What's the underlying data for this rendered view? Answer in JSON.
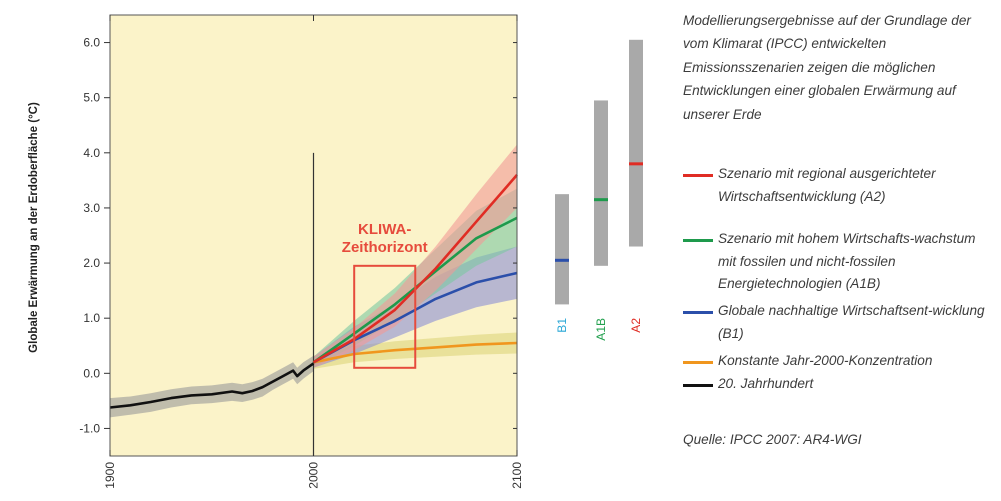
{
  "chart_data": {
    "type": "line",
    "ylabel": "Globale Erwärmung an der Erdoberfläche (°C)",
    "xlim": [
      1900,
      2100
    ],
    "ylim": [
      -1.5,
      6.5
    ],
    "x_ticks": [
      "1900",
      "2000",
      "2100"
    ],
    "y_ticks": [
      "-1.0",
      "0.0",
      "1.0",
      "2.0",
      "3.0",
      "4.0",
      "5.0",
      "6.0"
    ],
    "plot_background": "#fbf3c9",
    "grid": false,
    "vertical_marker_year": 2000,
    "series": [
      {
        "key": "hist",
        "name": "20. Jahrhundert",
        "color": "#111111",
        "band_color": "#9a9a9a",
        "x": [
          1900,
          1910,
          1920,
          1930,
          1940,
          1950,
          1960,
          1965,
          1970,
          1975,
          1980,
          1985,
          1990,
          1992,
          1995,
          2000
        ],
        "y": [
          -0.62,
          -0.58,
          -0.52,
          -0.45,
          -0.4,
          -0.38,
          -0.33,
          -0.36,
          -0.32,
          -0.25,
          -0.15,
          -0.05,
          0.05,
          -0.05,
          0.05,
          0.18
        ],
        "band_lower": [
          -0.8,
          -0.75,
          -0.7,
          -0.62,
          -0.56,
          -0.54,
          -0.5,
          -0.52,
          -0.48,
          -0.42,
          -0.3,
          -0.2,
          -0.1,
          -0.2,
          -0.1,
          0.04
        ],
        "band_upper": [
          -0.45,
          -0.42,
          -0.36,
          -0.29,
          -0.24,
          -0.22,
          -0.17,
          -0.2,
          -0.16,
          -0.1,
          0.0,
          0.1,
          0.2,
          0.1,
          0.2,
          0.32
        ]
      },
      {
        "key": "const",
        "name": "Konstante Jahr-2000-Konzentration",
        "color": "#f0961e",
        "band_color": "#ddd67c",
        "x": [
          2000,
          2020,
          2040,
          2060,
          2080,
          2100
        ],
        "y": [
          0.2,
          0.35,
          0.42,
          0.47,
          0.52,
          0.55
        ],
        "band_lower": [
          0.08,
          0.2,
          0.26,
          0.3,
          0.34,
          0.36
        ],
        "band_upper": [
          0.32,
          0.5,
          0.58,
          0.64,
          0.7,
          0.74
        ]
      },
      {
        "key": "b1",
        "name": "Globale nachhaltige Wirtschaftsentwicklung (B1)",
        "color": "#2b4faa",
        "band_color": "#8c90d6",
        "x": [
          2000,
          2020,
          2040,
          2060,
          2080,
          2100
        ],
        "y": [
          0.2,
          0.6,
          0.95,
          1.35,
          1.65,
          1.82
        ],
        "band_lower": [
          0.1,
          0.35,
          0.65,
          0.95,
          1.2,
          1.35
        ],
        "band_upper": [
          0.3,
          0.85,
          1.25,
          1.75,
          2.1,
          2.3
        ]
      },
      {
        "key": "a1b",
        "name": "Szenario mit hohem Wirtschaftswachstum mit fossilen und nicht-fossilen Energietechnologien (A1B)",
        "color": "#1e9a4c",
        "band_color": "#7cc8a2",
        "x": [
          2000,
          2020,
          2040,
          2060,
          2080,
          2100
        ],
        "y": [
          0.2,
          0.72,
          1.25,
          1.85,
          2.45,
          2.82
        ],
        "band_lower": [
          0.1,
          0.5,
          0.95,
          1.45,
          1.95,
          2.3
        ],
        "band_upper": [
          0.3,
          0.95,
          1.55,
          2.25,
          2.95,
          3.35
        ]
      },
      {
        "key": "a2",
        "name": "Szenario mit regional ausgerichteter Wirtschaftsentwicklung (A2)",
        "color": "#e02c24",
        "band_color": "#f29a96",
        "x": [
          2000,
          2020,
          2040,
          2060,
          2080,
          2100
        ],
        "y": [
          0.2,
          0.62,
          1.15,
          1.9,
          2.75,
          3.6
        ],
        "band_lower": [
          0.1,
          0.42,
          0.85,
          1.5,
          2.25,
          3.0
        ],
        "band_upper": [
          0.3,
          0.82,
          1.45,
          2.3,
          3.25,
          4.15
        ]
      }
    ],
    "kliwa_box": {
      "x_from": 2020,
      "x_to": 2050,
      "y_from": 0.1,
      "y_to": 1.95,
      "label_line1": "KLIWA-",
      "label_line2": "Zeithorizont",
      "color": "#e64b3c"
    },
    "ranges": [
      {
        "label": "B1",
        "low": 1.25,
        "high": 3.25,
        "best": 2.05,
        "label_color": "#2aa7d6",
        "mark_color": "#2b4faa"
      },
      {
        "label": "A1B",
        "low": 1.95,
        "high": 4.95,
        "best": 3.15,
        "label_color": "#22a04e",
        "mark_color": "#1e9a4c"
      },
      {
        "label": "A2",
        "low": 2.3,
        "high": 6.05,
        "best": 3.8,
        "label_color": "#e02c24",
        "mark_color": "#e02c24"
      }
    ],
    "range_bar_color": "#a9a9a9"
  },
  "side": {
    "description": "Modellierungsergebnisse auf der Grundlage der vom Klimarat (IPCC) entwickelten Emissionsszenarien zeigen die möglichen Entwicklungen einer globalen Erwärmung auf unserer Erde",
    "legend": [
      {
        "label": "Szenario mit regional ausgerichteter Wirtschaftsentwicklung (A2)",
        "color": "#e02c24"
      },
      {
        "label": "Szenario mit hohem Wirtschafts-wachstum mit fossilen und nicht-fossilen Energietechnologien (A1B)",
        "color": "#1e9a4c"
      },
      {
        "label": "Globale nachhaltige Wirtschaftsent-wicklung (B1)",
        "color": "#2b4faa"
      },
      {
        "label": "Konstante Jahr-2000-Konzentration",
        "color": "#f0961e"
      },
      {
        "label": "20. Jahrhundert",
        "color": "#111111"
      }
    ],
    "source": "Quelle: IPCC 2007: AR4-WGI"
  }
}
